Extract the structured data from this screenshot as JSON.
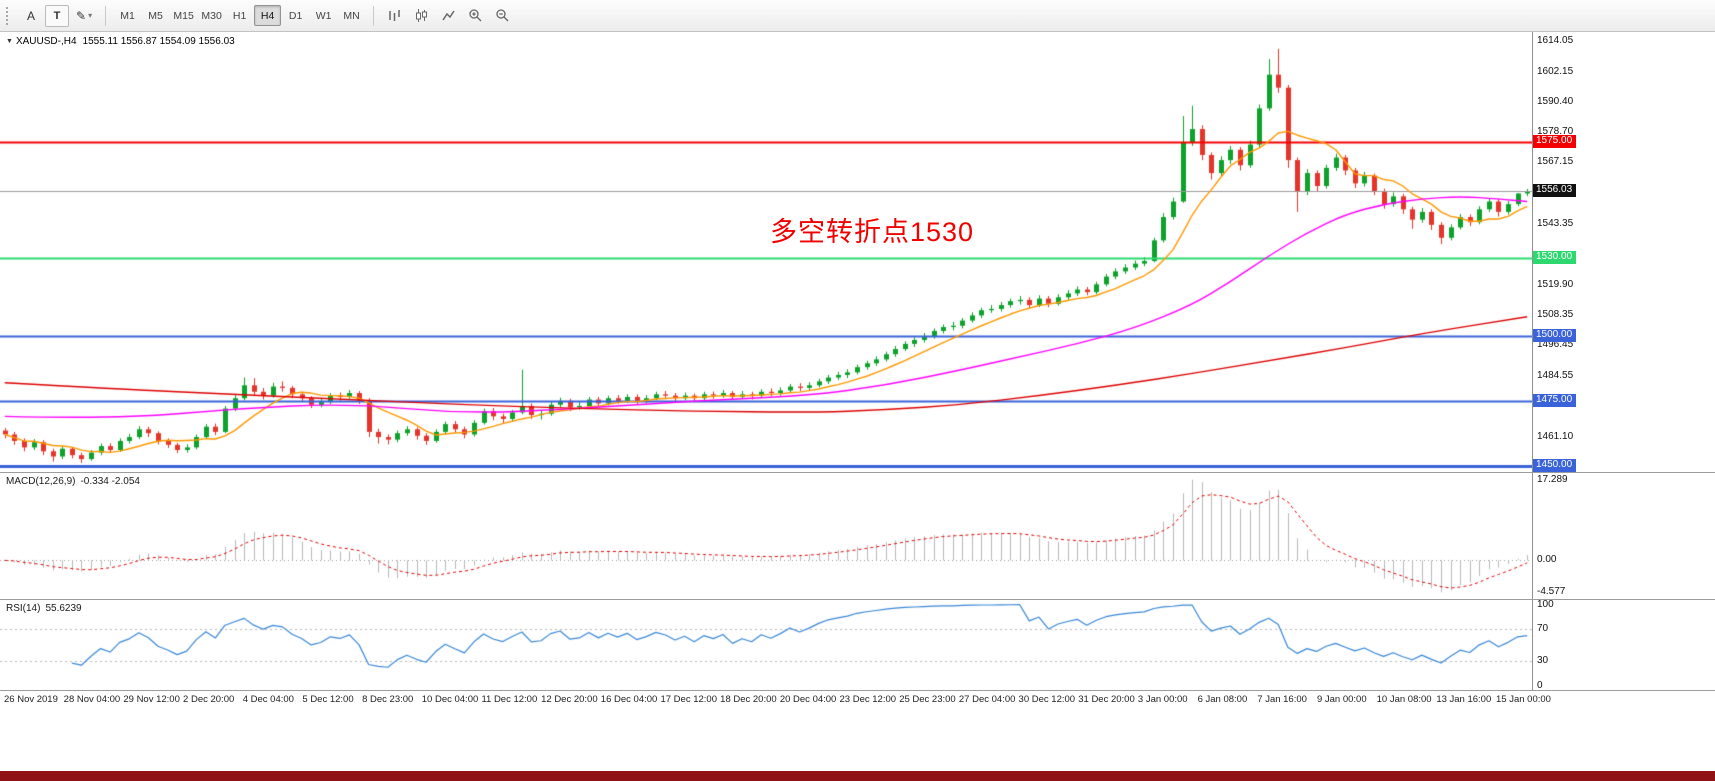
{
  "toolbar": {
    "drawing_tools": [
      {
        "name": "cursor-tool",
        "glyph": "A"
      },
      {
        "name": "text-tool",
        "glyph": "T"
      }
    ],
    "shapes_tool_glyph": "✎",
    "timeframes": [
      "M1",
      "M5",
      "M15",
      "M30",
      "H1",
      "H4",
      "D1",
      "W1",
      "MN"
    ],
    "active_timeframe": "H4"
  },
  "chart_header": {
    "symbol_period": "XAUUSD-,H4",
    "ohlc_text": "1555.11 1556.87 1554.09 1556.03"
  },
  "annotation": {
    "text": "多空转折点1530",
    "color": "#f20000"
  },
  "indicator_macd": {
    "label": "MACD(12,26,9)",
    "values": "-0.334 -2.054"
  },
  "indicator_rsi": {
    "label": "RSI(14)",
    "value": "55.6239"
  },
  "chart_data": {
    "type": "candlestick",
    "title": "XAUUSD-,H4",
    "y_range": [
      1447.5,
      1617.5
    ],
    "colors": {
      "up": "#0ea12b",
      "down": "#e5352b",
      "ma_fast": "#ff9800",
      "ma_medium": "#ff00ff",
      "ma_slow": "#dd0000",
      "macd_histogram": "#b9b9b9",
      "macd_signal": "#e00000",
      "rsi_line": "#3a87d8"
    },
    "price_axis_labels": [
      "1614.05",
      "1602.15",
      "1590.40",
      "1578.70",
      "1567.15",
      "1543.35",
      "1519.90",
      "1508.35",
      "1496.45",
      "1484.55",
      "1461.10"
    ],
    "price_lines": [
      {
        "price": 1575.0,
        "text": "1575.00",
        "color": "#f40000",
        "box": "#f40000",
        "width": 2
      },
      {
        "price": 1556.03,
        "text": "1556.03",
        "color": "#9b9b9b",
        "box": "#111111",
        "width": 1
      },
      {
        "price": 1530.0,
        "text": "1530.00",
        "color": "#2dd96e",
        "box": "#2dd96e",
        "width": 2
      },
      {
        "price": 1500.0,
        "text": "1500.00",
        "color": "#3a62d9",
        "box": "#3a62d9",
        "width": 2
      },
      {
        "price": 1475.0,
        "text": "1475.00",
        "color": "#3a62d9",
        "box": "#3a62d9",
        "width": 2
      },
      {
        "price": 1450.0,
        "text": "1450.00",
        "color": "#3a62d9",
        "box": "#3a62d9",
        "width": 3
      }
    ],
    "time_labels": [
      "26 Nov 2019",
      "28 Nov 04:00",
      "29 Nov 12:00",
      "2 Dec 20:00",
      "4 Dec 04:00",
      "5 Dec 12:00",
      "8 Dec 23:00",
      "10 Dec 04:00",
      "11 Dec 12:00",
      "12 Dec 20:00",
      "16 Dec 04:00",
      "17 Dec 12:00",
      "18 Dec 20:00",
      "20 Dec 04:00",
      "23 Dec 12:00",
      "25 Dec 23:00",
      "27 Dec 04:00",
      "30 Dec 12:00",
      "31 Dec 20:00",
      "3 Jan 00:00",
      "6 Jan 08:00",
      "7 Jan 16:00",
      "9 Jan 00:00",
      "10 Jan 08:00",
      "13 Jan 16:00",
      "15 Jan 00:00"
    ],
    "candles": [
      [
        1463.5,
        1464.5,
        1460.5,
        1462
      ],
      [
        1462,
        1463,
        1458,
        1459.5
      ],
      [
        1459.5,
        1460.5,
        1455.5,
        1457
      ],
      [
        1457,
        1460.2,
        1456,
        1459
      ],
      [
        1459,
        1459.8,
        1454,
        1455.5
      ],
      [
        1455.5,
        1456.5,
        1451.5,
        1453.5
      ],
      [
        1453.5,
        1457.5,
        1452.5,
        1456.5
      ],
      [
        1456.5,
        1457.2,
        1452.8,
        1454
      ],
      [
        1454,
        1455,
        1451,
        1452.5
      ],
      [
        1452.5,
        1456,
        1451.8,
        1455
      ],
      [
        1455,
        1458.5,
        1454,
        1457.5
      ],
      [
        1457.5,
        1458.6,
        1454.8,
        1456
      ],
      [
        1456,
        1460.5,
        1455.2,
        1459.5
      ],
      [
        1459.5,
        1462.2,
        1458.5,
        1461
      ],
      [
        1461,
        1465.2,
        1460.2,
        1464
      ],
      [
        1464,
        1465,
        1461,
        1462.5
      ],
      [
        1462.5,
        1463.2,
        1458.2,
        1459.5
      ],
      [
        1459.5,
        1460.5,
        1456.8,
        1458
      ],
      [
        1458,
        1458.8,
        1454.8,
        1456
      ],
      [
        1456,
        1458.2,
        1455,
        1457
      ],
      [
        1457,
        1462,
        1456.2,
        1461
      ],
      [
        1461,
        1466,
        1460.2,
        1465
      ],
      [
        1465,
        1466.2,
        1461.8,
        1463
      ],
      [
        1463,
        1473,
        1462.5,
        1472
      ],
      [
        1472,
        1477.2,
        1471,
        1476
      ],
      [
        1476,
        1484,
        1475.2,
        1481
      ],
      [
        1481,
        1483.8,
        1477,
        1478.5
      ],
      [
        1478.5,
        1480,
        1475.5,
        1477
      ],
      [
        1477,
        1482,
        1476.2,
        1480.5
      ],
      [
        1480.5,
        1482.5,
        1478.5,
        1480
      ],
      [
        1480,
        1480.8,
        1476,
        1477.5
      ],
      [
        1477.5,
        1478.5,
        1474.5,
        1476
      ],
      [
        1476,
        1476.8,
        1472.2,
        1473.5
      ],
      [
        1473.5,
        1476,
        1472.5,
        1474.5
      ],
      [
        1474.5,
        1478,
        1473.8,
        1477
      ],
      [
        1477,
        1478.2,
        1475,
        1476.5
      ],
      [
        1476.5,
        1479.2,
        1475.8,
        1478
      ],
      [
        1478,
        1478.8,
        1473.8,
        1475
      ],
      [
        1475,
        1476,
        1461,
        1463
      ],
      [
        1463,
        1464.2,
        1458.5,
        1461
      ],
      [
        1461,
        1462,
        1458.2,
        1460
      ],
      [
        1460,
        1463.5,
        1459,
        1462.5
      ],
      [
        1462.5,
        1465.2,
        1461.5,
        1464
      ],
      [
        1464,
        1464.8,
        1460,
        1461.5
      ],
      [
        1461.5,
        1462.5,
        1458,
        1459.5
      ],
      [
        1459.5,
        1464,
        1458.8,
        1463
      ],
      [
        1463,
        1467,
        1462,
        1466
      ],
      [
        1466,
        1467.2,
        1462.8,
        1464
      ],
      [
        1464,
        1465,
        1460.5,
        1462
      ],
      [
        1462,
        1467.5,
        1461.2,
        1466.5
      ],
      [
        1466.5,
        1472,
        1465.8,
        1471
      ],
      [
        1471,
        1472.2,
        1467.5,
        1469
      ],
      [
        1469,
        1470,
        1466.2,
        1468
      ],
      [
        1468,
        1471.5,
        1467,
        1470.5
      ],
      [
        1470.5,
        1487,
        1469.8,
        1473
      ],
      [
        1473,
        1474,
        1468,
        1469.5
      ],
      [
        1469.5,
        1471.2,
        1467.8,
        1470
      ],
      [
        1470,
        1474.5,
        1469.2,
        1473.5
      ],
      [
        1473.5,
        1476.2,
        1472.5,
        1475
      ],
      [
        1475,
        1475.8,
        1471,
        1472.5
      ],
      [
        1472.5,
        1474.5,
        1471.5,
        1473
      ],
      [
        1473,
        1476.5,
        1472.2,
        1475.5
      ],
      [
        1475.5,
        1476.5,
        1472.8,
        1474
      ],
      [
        1474,
        1477,
        1473.2,
        1476
      ],
      [
        1476,
        1477.2,
        1473.8,
        1475
      ],
      [
        1475,
        1477.5,
        1474.2,
        1476.5
      ],
      [
        1476.5,
        1477.5,
        1473.8,
        1475
      ],
      [
        1475,
        1477.2,
        1474,
        1476
      ],
      [
        1476,
        1478.5,
        1475.2,
        1477.5
      ],
      [
        1477.5,
        1478.8,
        1475.8,
        1477
      ],
      [
        1477,
        1478,
        1474.8,
        1476
      ],
      [
        1476,
        1478.2,
        1475.2,
        1477
      ],
      [
        1477,
        1477.8,
        1474.5,
        1476
      ],
      [
        1476,
        1478.5,
        1475,
        1477.5
      ],
      [
        1477.5,
        1478.6,
        1475.8,
        1477
      ],
      [
        1477,
        1479.2,
        1476.2,
        1478
      ],
      [
        1478,
        1478.8,
        1475.2,
        1476.5
      ],
      [
        1476.5,
        1478.8,
        1475.8,
        1477.5
      ],
      [
        1477.5,
        1478.5,
        1475.5,
        1477
      ],
      [
        1477,
        1479.5,
        1476.2,
        1478.5
      ],
      [
        1478.5,
        1479.8,
        1476.8,
        1478
      ],
      [
        1478,
        1480.2,
        1477,
        1479
      ],
      [
        1479,
        1481.5,
        1478.2,
        1480.5
      ],
      [
        1480.5,
        1481.8,
        1478.8,
        1480
      ],
      [
        1480,
        1482.2,
        1479,
        1481
      ],
      [
        1481,
        1483.5,
        1480.2,
        1482.5
      ],
      [
        1482.5,
        1485,
        1481.5,
        1484
      ],
      [
        1484,
        1486.2,
        1483,
        1485
      ],
      [
        1485,
        1487.2,
        1483.8,
        1486
      ],
      [
        1486,
        1489,
        1485.2,
        1488
      ],
      [
        1488,
        1490.5,
        1487,
        1489.5
      ],
      [
        1489.5,
        1492.2,
        1488.5,
        1491
      ],
      [
        1491,
        1494,
        1490.2,
        1493
      ],
      [
        1493,
        1496.2,
        1492,
        1495
      ],
      [
        1495,
        1498,
        1494.2,
        1497
      ],
      [
        1497,
        1499.5,
        1495.8,
        1498.5
      ],
      [
        1498.5,
        1501.2,
        1497.5,
        1500
      ],
      [
        1500,
        1503,
        1499,
        1502
      ],
      [
        1502,
        1504.5,
        1501,
        1503.5
      ],
      [
        1503.5,
        1505.5,
        1502.2,
        1504
      ],
      [
        1504,
        1507,
        1503,
        1506
      ],
      [
        1506,
        1509.2,
        1505.2,
        1508
      ],
      [
        1508,
        1511,
        1507,
        1510
      ],
      [
        1510,
        1512,
        1509,
        1510.5
      ],
      [
        1510.5,
        1513.2,
        1509.5,
        1512
      ],
      [
        1512,
        1514.5,
        1511,
        1513.5
      ],
      [
        1513.5,
        1515.5,
        1512.2,
        1514
      ],
      [
        1514,
        1515,
        1510.8,
        1512
      ],
      [
        1512,
        1515.8,
        1511.2,
        1514.5
      ],
      [
        1514.5,
        1515.5,
        1511.2,
        1512.5
      ],
      [
        1512.5,
        1516.2,
        1511.8,
        1515
      ],
      [
        1515,
        1517.8,
        1514,
        1516.5
      ],
      [
        1516.5,
        1519.2,
        1515.5,
        1518
      ],
      [
        1518,
        1519,
        1515.8,
        1517
      ],
      [
        1517,
        1521,
        1516.2,
        1520
      ],
      [
        1520,
        1524,
        1519.2,
        1523
      ],
      [
        1523,
        1526.2,
        1522,
        1525
      ],
      [
        1525,
        1527.8,
        1524,
        1526.5
      ],
      [
        1526.5,
        1529.2,
        1525.5,
        1528
      ],
      [
        1528,
        1530.5,
        1527,
        1529
      ],
      [
        1529,
        1538,
        1528.5,
        1537
      ],
      [
        1537,
        1547.5,
        1536.2,
        1546
      ],
      [
        1546,
        1553.5,
        1545,
        1552
      ],
      [
        1552,
        1585,
        1551.5,
        1575
      ],
      [
        1575,
        1589,
        1573.5,
        1580
      ],
      [
        1580,
        1581.5,
        1568,
        1570
      ],
      [
        1570,
        1571,
        1560.5,
        1563
      ],
      [
        1563,
        1569.5,
        1561.8,
        1568
      ],
      [
        1568,
        1573.5,
        1566.5,
        1572
      ],
      [
        1572,
        1573,
        1564,
        1566
      ],
      [
        1566,
        1575.5,
        1565,
        1574
      ],
      [
        1574,
        1589.5,
        1573,
        1588
      ],
      [
        1588,
        1607,
        1587,
        1601
      ],
      [
        1601,
        1611,
        1594,
        1596
      ],
      [
        1596,
        1597,
        1565,
        1568
      ],
      [
        1568,
        1569,
        1548,
        1556
      ],
      [
        1556,
        1564.5,
        1554.5,
        1563
      ],
      [
        1563,
        1564,
        1555.8,
        1558
      ],
      [
        1558,
        1566.2,
        1557,
        1565
      ],
      [
        1565,
        1570.5,
        1563.8,
        1569
      ],
      [
        1569,
        1570,
        1562.2,
        1564
      ],
      [
        1564,
        1565,
        1557.2,
        1559
      ],
      [
        1559,
        1563.5,
        1557.8,
        1562
      ],
      [
        1562,
        1562.8,
        1554.5,
        1556
      ],
      [
        1556,
        1557,
        1549.2,
        1551
      ],
      [
        1551,
        1555.5,
        1550,
        1554
      ],
      [
        1554,
        1555,
        1547.2,
        1549
      ],
      [
        1549,
        1550,
        1541.5,
        1545
      ],
      [
        1545,
        1549.5,
        1543.8,
        1548
      ],
      [
        1548,
        1549,
        1541,
        1543
      ],
      [
        1543,
        1544,
        1535.5,
        1538
      ],
      [
        1538,
        1543.2,
        1537,
        1542
      ],
      [
        1542,
        1547.2,
        1541.2,
        1546
      ],
      [
        1546,
        1547,
        1542.5,
        1544
      ],
      [
        1544,
        1550.2,
        1543.2,
        1549
      ],
      [
        1549,
        1553.2,
        1548,
        1552
      ],
      [
        1552,
        1553,
        1546.2,
        1548
      ],
      [
        1548,
        1552.2,
        1547,
        1551
      ],
      [
        1551,
        1555.2,
        1550.2,
        1555.11
      ],
      [
        1555.11,
        1556.87,
        1554.09,
        1556.03
      ]
    ],
    "moving_averages": {
      "fast_period": 8,
      "medium_points": [
        [
          0,
          1469
        ],
        [
          12,
          1468
        ],
        [
          24,
          1472
        ],
        [
          36,
          1474
        ],
        [
          48,
          1470
        ],
        [
          60,
          1472
        ],
        [
          72,
          1475
        ],
        [
          84,
          1477
        ],
        [
          92,
          1481
        ],
        [
          100,
          1487
        ],
        [
          106,
          1492
        ],
        [
          112,
          1497
        ],
        [
          118,
          1503
        ],
        [
          124,
          1512
        ],
        [
          128,
          1521
        ],
        [
          132,
          1531
        ],
        [
          136,
          1540
        ],
        [
          140,
          1547
        ],
        [
          144,
          1551
        ],
        [
          148,
          1553
        ],
        [
          152,
          1554
        ],
        [
          156,
          1553
        ],
        [
          159,
          1552
        ]
      ],
      "slow_points": [
        [
          0,
          1482
        ],
        [
          12,
          1479.5
        ],
        [
          24,
          1477.5
        ],
        [
          36,
          1475.5
        ],
        [
          48,
          1473.5
        ],
        [
          60,
          1472
        ],
        [
          72,
          1471
        ],
        [
          84,
          1470.5
        ],
        [
          92,
          1471.5
        ],
        [
          100,
          1473.5
        ],
        [
          108,
          1477
        ],
        [
          116,
          1481
        ],
        [
          124,
          1485.5
        ],
        [
          132,
          1490.5
        ],
        [
          140,
          1495.5
        ],
        [
          148,
          1501
        ],
        [
          159,
          1507.5
        ]
      ]
    },
    "macd_axis_labels": [
      "17.289",
      "0.00",
      "-4.577"
    ],
    "rsi_axis_labels": [
      "100",
      "70",
      "30",
      "0"
    ],
    "rsi_levels": [
      70,
      30
    ]
  }
}
